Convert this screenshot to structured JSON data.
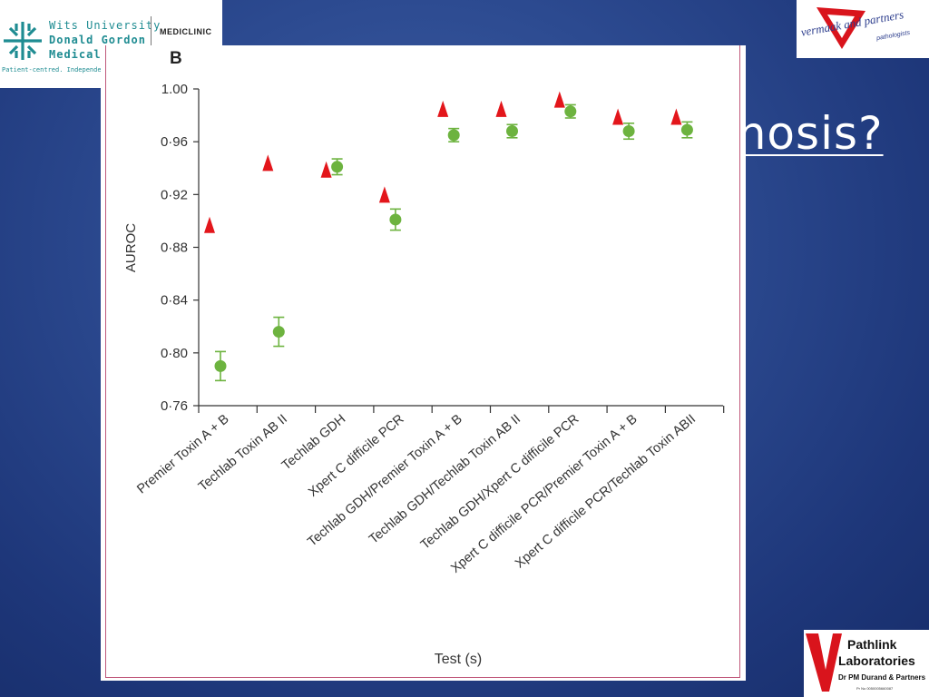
{
  "slide": {
    "title_fragment": "gnosis?"
  },
  "logos": {
    "wits": {
      "line1": "Wits University",
      "line2": "Donald Gordon",
      "line3": "Medical",
      "tagline": "Patient-centred. Independent",
      "partner": "MEDICLINIC"
    },
    "vermaak": {
      "name": "vermaak and partners",
      "sub": "pathologists"
    },
    "pathlink": {
      "line1": "Pathlink",
      "line2": "Laboratories",
      "sub": "Dr PM Durand & Partners",
      "reg": "Pr No 0050005660087"
    }
  },
  "colors": {
    "green": "#6db33f",
    "red": "#e3161b",
    "background": "#2c4a90"
  },
  "chart_data": {
    "type": "scatter",
    "panel_label": "B",
    "xlabel": "Test (s)",
    "ylabel": "AUROC",
    "ylim": [
      0.76,
      1.0
    ],
    "yticks": [
      "0·76",
      "0·80",
      "0·84",
      "0·88",
      "0·92",
      "0·96",
      "1.00"
    ],
    "ytick_values": [
      0.76,
      0.8,
      0.84,
      0.88,
      0.92,
      0.96,
      1.0
    ],
    "categories": [
      "Premier Toxin A + B",
      "Techlab Toxin AB II",
      "Techlab GDH",
      "Xpert C difficile PCR",
      "Techlab GDH/Premier Toxin A + B",
      "Techlab GDH/Techlab Toxin AB II",
      "Techlab GDH/Xpert C difficile PCR",
      "Xpert C difficile PCR/Premier Toxin A + B",
      "Xpert C difficile PCR/Techlab Toxin ABII"
    ],
    "series": [
      {
        "marker": "circle",
        "color": "#6db33f",
        "values": [
          0.79,
          0.816,
          0.941,
          0.901,
          0.965,
          0.968,
          0.983,
          0.968,
          0.969
        ],
        "err_low": [
          0.779,
          0.805,
          0.935,
          0.893,
          0.96,
          0.963,
          0.978,
          0.962,
          0.963
        ],
        "err_high": [
          0.801,
          0.827,
          0.947,
          0.909,
          0.97,
          0.973,
          0.988,
          0.974,
          0.975
        ]
      },
      {
        "marker": "triangle",
        "color": "#e3161b",
        "values": [
          0.897,
          0.944,
          0.939,
          0.92,
          0.985,
          0.985,
          0.992,
          0.979,
          0.979
        ]
      }
    ]
  }
}
